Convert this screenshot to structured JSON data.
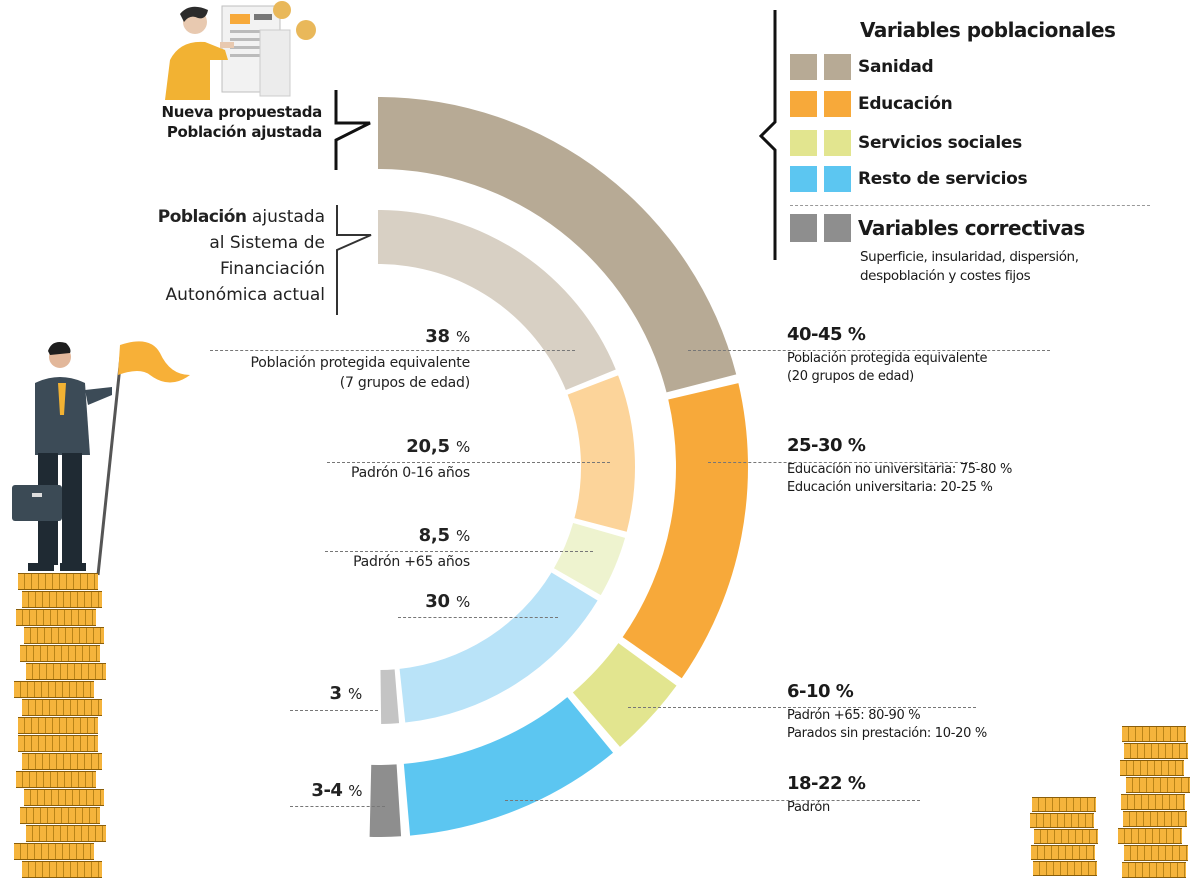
{
  "legend": {
    "poblacionales_title": "Variables poblacionales",
    "items": [
      {
        "label": "Sanidad",
        "color": "#b7aa95"
      },
      {
        "label": "Educación",
        "color": "#f7a93a"
      },
      {
        "label": "Servicios sociales",
        "color": "#e2e58f"
      },
      {
        "label": "Resto de servicios",
        "color": "#5cc6f1"
      }
    ],
    "correctivas_title": "Variables correctivas",
    "correctivas_color": "#8e8e8e",
    "correctivas_desc_1": "Superficie, insularidad, dispersión,",
    "correctivas_desc_2": "despoblación y  costes fijos"
  },
  "rings": {
    "outer_label_1": "Nueva propuestada",
    "outer_label_2": "Población ajustada",
    "inner_label_bold": "Población",
    "inner_label_1": " ajustada",
    "inner_label_2": "al Sistema de",
    "inner_label_3": "Financiación",
    "inner_label_4": "Autonómica actual"
  },
  "annotations_left": [
    {
      "pct": "38",
      "unit": "%",
      "desc_1": "Población protegida equivalente",
      "desc_2": "(7 grupos de edad)"
    },
    {
      "pct": "20,5",
      "unit": "%",
      "desc_1": "Padrón 0-16 años"
    },
    {
      "pct": "8,5",
      "unit": "%",
      "desc_1": "Padrón +65 años"
    },
    {
      "pct": "30",
      "unit": "%"
    },
    {
      "pct": "3",
      "unit": "%"
    },
    {
      "pct": "3-4",
      "unit": "%"
    }
  ],
  "annotations_right": [
    {
      "pct": "40-45 %",
      "desc_1": "Población protegida equivalente",
      "desc_2": "(20 grupos de edad)"
    },
    {
      "pct": "25-30 %",
      "desc_1": "Educación no universitaria: 75-80 %",
      "desc_2": "Educación universitaria: 20-25 %"
    },
    {
      "pct": "6-10 %",
      "desc_1": "Padrón +65: 80-90 %",
      "desc_2": "Parados sin prestación: 10-20 %"
    },
    {
      "pct": "18-22 %",
      "desc_1": "Padrón"
    }
  ],
  "chart_data": {
    "type": "pie",
    "subtype": "double half-donut",
    "title": "Variables poblacionales y correctivas",
    "series": [
      {
        "name": "Población ajustada al Sistema de Financiación Autonómica actual",
        "ring": "inner",
        "categories": [
          "Población protegida equivalente (7 grupos de edad)",
          "Padrón 0-16 años",
          "Padrón +65 años",
          "Resto de servicios",
          "Variables correctivas"
        ],
        "values": [
          38,
          20.5,
          8.5,
          30,
          3
        ],
        "colors": [
          "#d8d0c4",
          "#fcd49a",
          "#eef3cf",
          "#b9e3f8",
          "#c4c4c4"
        ]
      },
      {
        "name": "Nueva propuesta de Población ajustada",
        "ring": "outer",
        "categories": [
          "Sanidad: Población protegida equivalente (20 grupos de edad)",
          "Educación",
          "Servicios sociales",
          "Resto de servicios: Padrón",
          "Variables correctivas"
        ],
        "values": [
          42.5,
          27.5,
          8,
          20,
          3.5
        ],
        "ranges": [
          "40-45",
          "25-30",
          "6-10",
          "18-22",
          "3-4"
        ],
        "colors": [
          "#b7aa95",
          "#f7a93a",
          "#e2e58f",
          "#5cc6f1",
          "#8e8e8e"
        ]
      }
    ],
    "legend_position": "top-right"
  }
}
